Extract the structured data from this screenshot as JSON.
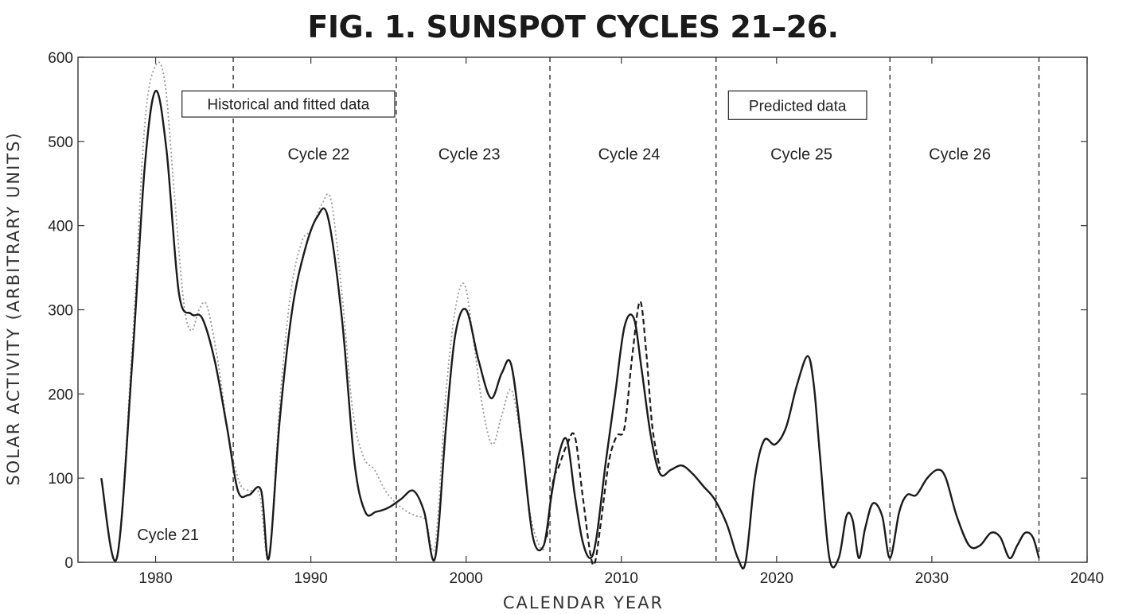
{
  "chart_data": {
    "type": "line",
    "title": "FIG. 1. SUNSPOT CYCLES 21–26.",
    "xlabel": "CALENDAR YEAR",
    "ylabel": "SOLAR ACTIVITY (ARBITRARY UNITS)",
    "xlim": [
      1975,
      2040
    ],
    "ylim": [
      0,
      600
    ],
    "x_ticks": [
      1980,
      1990,
      2000,
      2010,
      2020,
      2030,
      2040
    ],
    "y_ticks": [
      0,
      100,
      200,
      300,
      400,
      500,
      600
    ],
    "grid": false,
    "cycle_boundaries": [
      1985.0,
      1995.5,
      2005.4,
      2016.1,
      2027.3,
      2036.9
    ],
    "cycle_labels": [
      {
        "label": "Cycle 21",
        "x": 1980.8,
        "y": 33
      },
      {
        "label": "Cycle 22",
        "x": 1990.5,
        "y": 485
      },
      {
        "label": "Cycle 23",
        "x": 2000.2,
        "y": 485
      },
      {
        "label": "Cycle 24",
        "x": 2010.5,
        "y": 485
      },
      {
        "label": "Cycle 25",
        "x": 2021.6,
        "y": 485
      },
      {
        "label": "Cycle 26",
        "x": 2031.8,
        "y": 485
      }
    ],
    "boxes": [
      {
        "label": "Historical and fitted data",
        "x0": 1981.7,
        "x1": 1995.4,
        "y_top": 560,
        "y_bottom": 529
      },
      {
        "label": "Predicted data",
        "x0": 2016.9,
        "x1": 2025.8,
        "y_top": 560,
        "y_bottom": 526
      }
    ],
    "series": [
      {
        "style": "solid",
        "x": [
          1976.5,
          1977.5,
          1978.5,
          1979.3,
          1980.0,
          1980.7,
          1981.5,
          1982.3,
          1983.0,
          1983.8,
          1984.6,
          1985.3,
          1986.0,
          1986.8,
          1987.3,
          1988.0,
          1988.8,
          1989.6,
          1990.4,
          1991.1,
          1992.0,
          1992.8,
          1993.5,
          1994.2,
          1995.0,
          1995.8,
          1996.6,
          1997.3,
          1998.0,
          1998.7,
          1999.3,
          2000.0,
          2000.8,
          2001.6,
          2002.3,
          2002.9,
          2003.6,
          2004.3,
          2005.0,
          2005.5,
          2006.0,
          2006.5,
          2007.0,
          2007.5,
          2008.0,
          2008.4,
          2009.0,
          2009.6,
          2010.2,
          2010.8,
          2011.3,
          2011.9,
          2012.5,
          2013.2,
          2013.9,
          2014.6,
          2015.3,
          2016.0,
          2016.8,
          2017.5,
          2018.0,
          2018.6,
          2019.2,
          2019.9,
          2020.6,
          2021.3,
          2022.0,
          2022.4,
          2022.8,
          2023.4,
          2024.0,
          2024.5,
          2024.9,
          2025.3,
          2025.7,
          2026.2,
          2026.8,
          2027.3,
          2027.9,
          2028.4,
          2029.0,
          2029.7,
          2030.4,
          2030.9,
          2031.6,
          2032.4,
          2033.1,
          2033.8,
          2034.4,
          2035.0,
          2035.5,
          2036.0,
          2036.5,
          2036.9
        ],
        "y": [
          100,
          5,
          240,
          470,
          560,
          490,
          320,
          295,
          290,
          240,
          160,
          85,
          80,
          85,
          5,
          170,
          300,
          370,
          410,
          410,
          290,
          120,
          60,
          60,
          65,
          75,
          85,
          60,
          5,
          160,
          270,
          300,
          240,
          195,
          225,
          235,
          140,
          30,
          20,
          80,
          130,
          145,
          80,
          25,
          5,
          30,
          120,
          200,
          280,
          290,
          230,
          150,
          105,
          110,
          115,
          105,
          90,
          75,
          45,
          5,
          0,
          100,
          145,
          140,
          160,
          210,
          245,
          210,
          125,
          5,
          5,
          55,
          50,
          5,
          40,
          70,
          55,
          5,
          60,
          80,
          80,
          100,
          110,
          100,
          55,
          20,
          20,
          35,
          30,
          5,
          20,
          35,
          30,
          5
        ]
      },
      {
        "style": "dotted",
        "x": [
          1976.5,
          1977.5,
          1978.5,
          1979.3,
          1980.0,
          1980.6,
          1981.2,
          1981.8,
          1982.3,
          1982.8,
          1983.3,
          1984.0,
          1984.7,
          1985.4,
          1986.0,
          1986.7,
          1987.3,
          1988.0,
          1988.7,
          1989.4,
          1990.0,
          1990.7,
          1991.3,
          1992.0,
          1992.7,
          1993.4,
          1994.1,
          1994.8,
          1995.5,
          1996.2,
          1996.8,
          1997.4,
          1998.0,
          1998.7,
          1999.3,
          1999.9,
          2000.5,
          2001.1,
          2001.7,
          2002.3,
          2002.9,
          2003.5,
          2004.1,
          2004.7,
          2005.1
        ],
        "y": [
          100,
          5,
          260,
          520,
          590,
          570,
          440,
          310,
          275,
          300,
          305,
          240,
          150,
          95,
          85,
          80,
          5,
          190,
          320,
          380,
          395,
          425,
          430,
          320,
          180,
          125,
          110,
          85,
          70,
          60,
          55,
          50,
          20,
          200,
          300,
          330,
          260,
          180,
          140,
          175,
          205,
          150,
          60,
          20,
          15
        ]
      },
      {
        "style": "dashed",
        "x": [
          2005.2,
          2005.6,
          2006.0,
          2006.5,
          2007.0,
          2007.5,
          2008.0,
          2008.3,
          2008.7,
          2009.2,
          2009.7,
          2010.2,
          2010.7,
          2011.2,
          2011.6,
          2012.0,
          2012.5
        ],
        "y": [
          30,
          95,
          115,
          140,
          150,
          80,
          10,
          0,
          50,
          120,
          150,
          160,
          245,
          310,
          250,
          160,
          110
        ]
      }
    ]
  }
}
